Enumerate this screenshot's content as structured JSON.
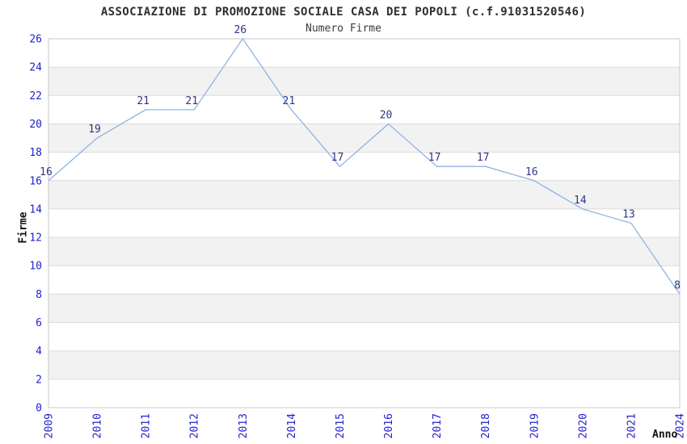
{
  "page": {
    "title": "ASSOCIAZIONE DI PROMOZIONE SOCIALE CASA DEI POPOLI (c.f.91031520546)",
    "subtitle": "Numero Firme"
  },
  "chart_data": {
    "type": "line",
    "title": "ASSOCIAZIONE DI PROMOZIONE SOCIALE CASA DEI POPOLI (c.f.91031520546)",
    "subtitle": "Numero Firme",
    "xlabel": "Anno",
    "ylabel": "Firme",
    "categories": [
      "2009",
      "2010",
      "2011",
      "2012",
      "2013",
      "2014",
      "2015",
      "2016",
      "2017",
      "2018",
      "2019",
      "2020",
      "2021",
      "2024"
    ],
    "values": [
      16,
      19,
      21,
      21,
      26,
      21,
      17,
      20,
      17,
      17,
      16,
      14,
      13,
      8
    ],
    "ylim": [
      0,
      26
    ],
    "ytick_step": 2,
    "grid": "horizontal",
    "band_fill": "alternating",
    "legend": "none",
    "point_labels_visible": true,
    "colors": {
      "line": "#8cb4e4",
      "point_label": "#333388",
      "tick_label": "#2222cc",
      "band": "#f2f2f2",
      "gridline": "#dbdbdb",
      "border": "#c9c9c9",
      "title": "#2f2f2f",
      "subtitle": "#3c3c3c",
      "axis_title": "#111111",
      "background": "#ffffff"
    }
  }
}
